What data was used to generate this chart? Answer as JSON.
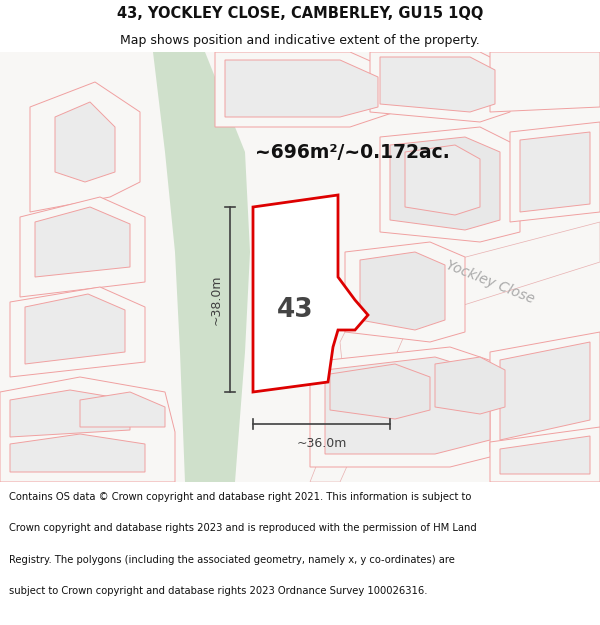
{
  "title_line1": "43, YOCKLEY CLOSE, CAMBERLEY, GU15 1QQ",
  "title_line2": "Map shows position and indicative extent of the property.",
  "area_text": "~696m²/~0.172ac.",
  "label_43": "43",
  "dim_vertical": "~38.0m",
  "dim_horizontal": "~36.0m",
  "street_label": "Yockley Close",
  "disc_lines": [
    "Contains OS data © Crown copyright and database right 2021. This information is subject to",
    "Crown copyright and database rights 2023 and is reproduced with the permission of HM Land",
    "Registry. The polygons (including the associated geometry, namely x, y co-ordinates) are",
    "subject to Crown copyright and database rights 2023 Ordnance Survey 100026316."
  ],
  "map_bg": "#f8f7f5",
  "building_fill": "#ebebeb",
  "building_edge": "#f0a0a0",
  "building_fill2": "#e8e8e8",
  "plot_fill_light": "#f5f3f0",
  "green_strip_color": "#cfe0cb",
  "property_fill": "#ffffff",
  "property_edge": "#dd0000",
  "dim_color": "#404040",
  "title_color": "#111111",
  "disclaimer_color": "#111111",
  "road_outline": "#e8b0b0",
  "road_fill": "#f8f7f5"
}
